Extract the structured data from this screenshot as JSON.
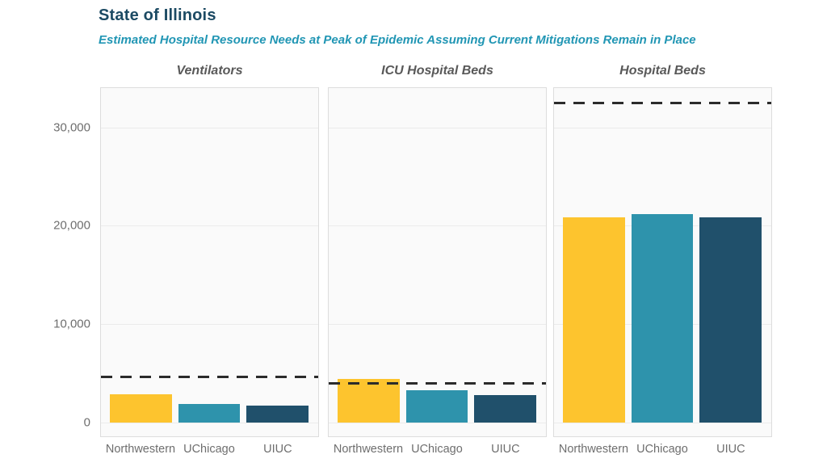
{
  "header": {
    "title": "State of Illinois",
    "subtitle": "Estimated Hospital Resource Needs at Peak of Epidemic Assuming Current Mitigations Remain in Place"
  },
  "colors": {
    "title_text": "#1c4a63",
    "subtitle_text": "#2196b4",
    "panel_title_text": "#595959",
    "axis_text": "#6e6e6e",
    "capacity_line": "#2b2b2b",
    "panel_background": "#fafafa",
    "panel_border": "#dddddd",
    "gridline": "#ebebeb",
    "bars": {
      "northwestern": "#fdc42e",
      "uchicago": "#2e93ac",
      "uiuc": "#20506b"
    }
  },
  "chart_data": {
    "type": "bar",
    "title": "State of Illinois",
    "subtitle": "Estimated Hospital Resource Needs at Peak of Epidemic Assuming Current Mitigations Remain in Place",
    "categories": [
      "Northwestern",
      "UChicago",
      "UIUC"
    ],
    "panels": [
      {
        "title": "Ventilators",
        "values": [
          2900,
          1900,
          1700
        ],
        "capacity_line": 4650
      },
      {
        "title": "ICU Hospital Beds",
        "values": [
          4400,
          3250,
          2800
        ],
        "capacity_line": 3950
      },
      {
        "title": "Hospital Beds",
        "values": [
          20900,
          21200,
          20900
        ],
        "capacity_line": 32500
      }
    ],
    "ylim": [
      0,
      34000
    ],
    "yticks": [
      0,
      10000,
      20000,
      30000
    ],
    "ytick_labels": [
      "0",
      "10,000",
      "20,000",
      "30,000"
    ],
    "grid": true,
    "legend": false,
    "capacity_line_style": "dashed"
  }
}
